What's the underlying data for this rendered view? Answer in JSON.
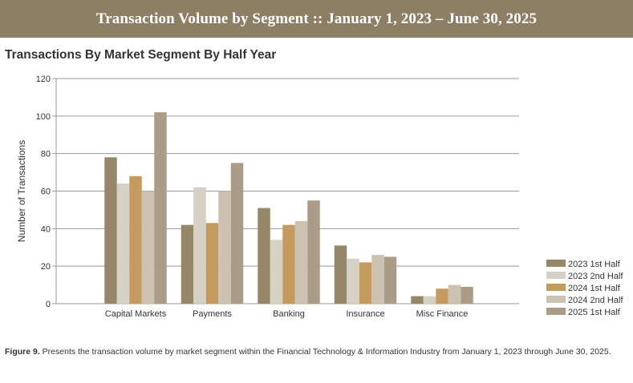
{
  "header": {
    "banner": "Transaction Volume by Segment :: January 1, 2023 – June 30, 2025"
  },
  "chart_data": {
    "type": "bar",
    "title": "Transactions By Market Segment By Half Year",
    "xlabel": "",
    "ylabel": "Number of Transactions",
    "ylim": [
      0,
      120
    ],
    "yticks": [
      0,
      20,
      40,
      60,
      80,
      100,
      120
    ],
    "grid": true,
    "legend_position": "bottom-right",
    "categories": [
      "Capital Markets",
      "Payments",
      "Banking",
      "Insurance",
      "Misc Finance"
    ],
    "series": [
      {
        "name": "2023 1st Half",
        "color": "#958768",
        "values": [
          78,
          42,
          51,
          31,
          4
        ]
      },
      {
        "name": "2023 2nd Half",
        "color": "#d5d1c4",
        "values": [
          64,
          62,
          34,
          24,
          4
        ]
      },
      {
        "name": "2024 1st Half",
        "color": "#c59a5e",
        "values": [
          68,
          43,
          42,
          22,
          8
        ]
      },
      {
        "name": "2024 2nd Half",
        "color": "#cdc2b2",
        "values": [
          60,
          60,
          44,
          26,
          10
        ]
      },
      {
        "name": "2025 1st Half",
        "color": "#aa9c86",
        "values": [
          102,
          75,
          55,
          25,
          9
        ]
      }
    ]
  },
  "caption": {
    "label": "Figure 9.",
    "text": " Presents the transaction volume by market segment within the Financial Technology & Information Industry from January 1, 2023 through June 30, 2025."
  }
}
